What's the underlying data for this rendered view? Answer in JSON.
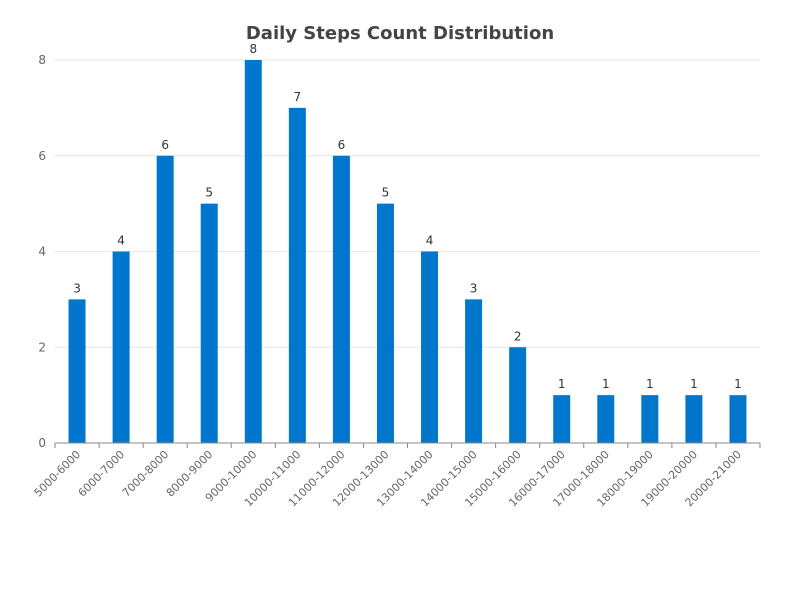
{
  "chart_data": {
    "type": "bar",
    "title": "Daily Steps Count Distribution",
    "xlabel": "",
    "ylabel": "",
    "categories": [
      "5000-6000",
      "6000-7000",
      "7000-8000",
      "8000-9000",
      "9000-10000",
      "10000-11000",
      "11000-12000",
      "12000-13000",
      "13000-14000",
      "14000-15000",
      "15000-16000",
      "16000-17000",
      "17000-18000",
      "18000-19000",
      "19000-20000",
      "20000-21000"
    ],
    "values": [
      3,
      4,
      6,
      5,
      8,
      7,
      6,
      5,
      4,
      3,
      2,
      1,
      1,
      1,
      1,
      1
    ],
    "ylim": [
      0,
      8
    ],
    "yticks": [
      0,
      2,
      4,
      6,
      8
    ],
    "grid": true,
    "legend": "none",
    "bar_color": "#0077cc"
  }
}
